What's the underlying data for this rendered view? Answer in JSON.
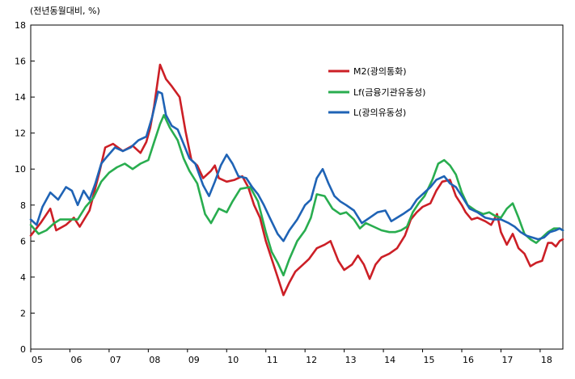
{
  "chart_data": {
    "type": "line",
    "unit_label": "(전년동월대비, %)",
    "ylim": [
      0,
      18
    ],
    "yticks": [
      0,
      2,
      4,
      6,
      8,
      10,
      12,
      14,
      16,
      18
    ],
    "xlim": [
      2005,
      2018.58
    ],
    "xticks": [
      {
        "label": "05",
        "value": 2005
      },
      {
        "label": "06",
        "value": 2006
      },
      {
        "label": "07",
        "value": 2007
      },
      {
        "label": "08",
        "value": 2008
      },
      {
        "label": "09",
        "value": 2009
      },
      {
        "label": "10",
        "value": 2010
      },
      {
        "label": "11",
        "value": 2011
      },
      {
        "label": "12",
        "value": 2012
      },
      {
        "label": "13",
        "value": 2013
      },
      {
        "label": "14",
        "value": 2014
      },
      {
        "label": "15",
        "value": 2015
      },
      {
        "label": "16",
        "value": 2016
      },
      {
        "label": "17",
        "value": 2017
      },
      {
        "label": "18",
        "value": 2018
      }
    ],
    "grid": false,
    "legend_position": "top-right",
    "series": [
      {
        "name": "M2(광의통화)",
        "color": "#cc1f26",
        "points": [
          [
            2005.0,
            6.3
          ],
          [
            2005.25,
            7.0
          ],
          [
            2005.5,
            7.8
          ],
          [
            2005.65,
            6.6
          ],
          [
            2005.9,
            6.9
          ],
          [
            2006.1,
            7.3
          ],
          [
            2006.25,
            6.8
          ],
          [
            2006.5,
            7.7
          ],
          [
            2006.75,
            9.8
          ],
          [
            2006.9,
            11.2
          ],
          [
            2007.1,
            11.4
          ],
          [
            2007.35,
            11.0
          ],
          [
            2007.6,
            11.3
          ],
          [
            2007.8,
            10.9
          ],
          [
            2007.95,
            11.5
          ],
          [
            2008.05,
            12.3
          ],
          [
            2008.15,
            13.5
          ],
          [
            2008.3,
            15.8
          ],
          [
            2008.45,
            15.0
          ],
          [
            2008.6,
            14.6
          ],
          [
            2008.8,
            14.0
          ],
          [
            2008.95,
            12.1
          ],
          [
            2009.1,
            10.5
          ],
          [
            2009.25,
            10.2
          ],
          [
            2009.4,
            9.5
          ],
          [
            2009.6,
            9.9
          ],
          [
            2009.7,
            10.2
          ],
          [
            2009.8,
            9.5
          ],
          [
            2010.0,
            9.3
          ],
          [
            2010.2,
            9.4
          ],
          [
            2010.4,
            9.6
          ],
          [
            2010.55,
            9.0
          ],
          [
            2010.7,
            8.0
          ],
          [
            2010.85,
            7.3
          ],
          [
            2011.0,
            6.0
          ],
          [
            2011.15,
            5.0
          ],
          [
            2011.3,
            4.0
          ],
          [
            2011.45,
            3.0
          ],
          [
            2011.6,
            3.7
          ],
          [
            2011.75,
            4.3
          ],
          [
            2011.95,
            4.7
          ],
          [
            2012.1,
            5.0
          ],
          [
            2012.3,
            5.6
          ],
          [
            2012.5,
            5.8
          ],
          [
            2012.65,
            6.0
          ],
          [
            2012.85,
            4.9
          ],
          [
            2013.0,
            4.4
          ],
          [
            2013.2,
            4.7
          ],
          [
            2013.35,
            5.2
          ],
          [
            2013.5,
            4.7
          ],
          [
            2013.65,
            3.9
          ],
          [
            2013.8,
            4.7
          ],
          [
            2013.95,
            5.1
          ],
          [
            2014.15,
            5.3
          ],
          [
            2014.35,
            5.6
          ],
          [
            2014.55,
            6.3
          ],
          [
            2014.7,
            7.2
          ],
          [
            2014.85,
            7.6
          ],
          [
            2015.0,
            7.9
          ],
          [
            2015.2,
            8.1
          ],
          [
            2015.35,
            8.8
          ],
          [
            2015.5,
            9.3
          ],
          [
            2015.7,
            9.4
          ],
          [
            2015.85,
            8.5
          ],
          [
            2016.0,
            8.0
          ],
          [
            2016.1,
            7.6
          ],
          [
            2016.25,
            7.2
          ],
          [
            2016.4,
            7.3
          ],
          [
            2016.6,
            7.1
          ],
          [
            2016.75,
            6.9
          ],
          [
            2016.9,
            7.5
          ],
          [
            2017.0,
            6.5
          ],
          [
            2017.15,
            5.8
          ],
          [
            2017.3,
            6.4
          ],
          [
            2017.45,
            5.6
          ],
          [
            2017.6,
            5.3
          ],
          [
            2017.75,
            4.6
          ],
          [
            2017.9,
            4.8
          ],
          [
            2018.05,
            4.9
          ],
          [
            2018.2,
            5.9
          ],
          [
            2018.3,
            5.9
          ],
          [
            2018.4,
            5.7
          ],
          [
            2018.5,
            6.0
          ],
          [
            2018.58,
            6.1
          ]
        ]
      },
      {
        "name": "Lf(금융기관유동성)",
        "color": "#29ad4f",
        "points": [
          [
            2005.0,
            6.9
          ],
          [
            2005.2,
            6.4
          ],
          [
            2005.4,
            6.6
          ],
          [
            2005.6,
            7.0
          ],
          [
            2005.75,
            7.2
          ],
          [
            2006.0,
            7.2
          ],
          [
            2006.2,
            7.2
          ],
          [
            2006.4,
            7.9
          ],
          [
            2006.6,
            8.4
          ],
          [
            2006.8,
            9.3
          ],
          [
            2007.0,
            9.8
          ],
          [
            2007.2,
            10.1
          ],
          [
            2007.4,
            10.3
          ],
          [
            2007.6,
            10.0
          ],
          [
            2007.8,
            10.3
          ],
          [
            2008.0,
            10.5
          ],
          [
            2008.15,
            11.5
          ],
          [
            2008.3,
            12.5
          ],
          [
            2008.4,
            13.0
          ],
          [
            2008.55,
            12.3
          ],
          [
            2008.75,
            11.6
          ],
          [
            2008.9,
            10.6
          ],
          [
            2009.05,
            9.9
          ],
          [
            2009.25,
            9.2
          ],
          [
            2009.45,
            7.5
          ],
          [
            2009.6,
            7.0
          ],
          [
            2009.8,
            7.8
          ],
          [
            2010.0,
            7.6
          ],
          [
            2010.15,
            8.2
          ],
          [
            2010.35,
            8.9
          ],
          [
            2010.6,
            9.0
          ],
          [
            2010.8,
            8.2
          ],
          [
            2011.0,
            6.5
          ],
          [
            2011.15,
            5.4
          ],
          [
            2011.3,
            4.8
          ],
          [
            2011.45,
            4.1
          ],
          [
            2011.6,
            5.0
          ],
          [
            2011.8,
            6.0
          ],
          [
            2012.0,
            6.6
          ],
          [
            2012.15,
            7.3
          ],
          [
            2012.3,
            8.6
          ],
          [
            2012.5,
            8.5
          ],
          [
            2012.7,
            7.8
          ],
          [
            2012.9,
            7.5
          ],
          [
            2013.05,
            7.6
          ],
          [
            2013.25,
            7.2
          ],
          [
            2013.4,
            6.7
          ],
          [
            2013.55,
            7.0
          ],
          [
            2013.75,
            6.8
          ],
          [
            2013.95,
            6.6
          ],
          [
            2014.15,
            6.5
          ],
          [
            2014.3,
            6.5
          ],
          [
            2014.45,
            6.6
          ],
          [
            2014.6,
            6.8
          ],
          [
            2014.75,
            7.6
          ],
          [
            2014.9,
            8.1
          ],
          [
            2015.05,
            8.5
          ],
          [
            2015.25,
            9.4
          ],
          [
            2015.4,
            10.3
          ],
          [
            2015.55,
            10.5
          ],
          [
            2015.7,
            10.2
          ],
          [
            2015.85,
            9.7
          ],
          [
            2016.0,
            8.7
          ],
          [
            2016.15,
            8.0
          ],
          [
            2016.35,
            7.7
          ],
          [
            2016.55,
            7.5
          ],
          [
            2016.7,
            7.6
          ],
          [
            2016.85,
            7.4
          ],
          [
            2017.0,
            7.3
          ],
          [
            2017.15,
            7.8
          ],
          [
            2017.3,
            8.1
          ],
          [
            2017.45,
            7.3
          ],
          [
            2017.6,
            6.4
          ],
          [
            2017.75,
            6.1
          ],
          [
            2017.9,
            5.9
          ],
          [
            2018.05,
            6.2
          ],
          [
            2018.2,
            6.5
          ],
          [
            2018.35,
            6.7
          ],
          [
            2018.5,
            6.7
          ],
          [
            2018.58,
            6.6
          ]
        ]
      },
      {
        "name": "L(광의유동성)",
        "color": "#1f63b5",
        "points": [
          [
            2005.0,
            7.2
          ],
          [
            2005.15,
            6.9
          ],
          [
            2005.3,
            7.9
          ],
          [
            2005.5,
            8.7
          ],
          [
            2005.7,
            8.3
          ],
          [
            2005.9,
            9.0
          ],
          [
            2006.05,
            8.8
          ],
          [
            2006.2,
            8.0
          ],
          [
            2006.35,
            8.8
          ],
          [
            2006.5,
            8.3
          ],
          [
            2006.65,
            9.2
          ],
          [
            2006.8,
            10.3
          ],
          [
            2006.95,
            10.7
          ],
          [
            2007.15,
            11.2
          ],
          [
            2007.35,
            11.0
          ],
          [
            2007.55,
            11.2
          ],
          [
            2007.75,
            11.6
          ],
          [
            2007.95,
            11.8
          ],
          [
            2008.1,
            12.9
          ],
          [
            2008.25,
            14.3
          ],
          [
            2008.35,
            14.2
          ],
          [
            2008.45,
            13.0
          ],
          [
            2008.6,
            12.4
          ],
          [
            2008.75,
            12.2
          ],
          [
            2008.9,
            11.4
          ],
          [
            2009.05,
            10.6
          ],
          [
            2009.2,
            10.3
          ],
          [
            2009.4,
            9.1
          ],
          [
            2009.55,
            8.5
          ],
          [
            2009.7,
            9.3
          ],
          [
            2009.85,
            10.2
          ],
          [
            2010.0,
            10.8
          ],
          [
            2010.15,
            10.3
          ],
          [
            2010.3,
            9.6
          ],
          [
            2010.5,
            9.5
          ],
          [
            2010.65,
            9.0
          ],
          [
            2010.8,
            8.6
          ],
          [
            2010.95,
            8.0
          ],
          [
            2011.1,
            7.3
          ],
          [
            2011.3,
            6.4
          ],
          [
            2011.45,
            6.0
          ],
          [
            2011.6,
            6.6
          ],
          [
            2011.8,
            7.2
          ],
          [
            2012.0,
            8.0
          ],
          [
            2012.15,
            8.3
          ],
          [
            2012.3,
            9.5
          ],
          [
            2012.45,
            10.0
          ],
          [
            2012.6,
            9.2
          ],
          [
            2012.75,
            8.5
          ],
          [
            2012.9,
            8.2
          ],
          [
            2013.05,
            8.0
          ],
          [
            2013.25,
            7.7
          ],
          [
            2013.45,
            7.0
          ],
          [
            2013.65,
            7.3
          ],
          [
            2013.85,
            7.6
          ],
          [
            2014.05,
            7.7
          ],
          [
            2014.2,
            7.1
          ],
          [
            2014.35,
            7.3
          ],
          [
            2014.5,
            7.5
          ],
          [
            2014.7,
            7.8
          ],
          [
            2014.85,
            8.3
          ],
          [
            2015.0,
            8.6
          ],
          [
            2015.2,
            9.0
          ],
          [
            2015.35,
            9.4
          ],
          [
            2015.55,
            9.6
          ],
          [
            2015.7,
            9.2
          ],
          [
            2015.85,
            9.0
          ],
          [
            2016.0,
            8.5
          ],
          [
            2016.2,
            7.8
          ],
          [
            2016.4,
            7.6
          ],
          [
            2016.6,
            7.3
          ],
          [
            2016.8,
            7.2
          ],
          [
            2017.0,
            7.2
          ],
          [
            2017.2,
            7.0
          ],
          [
            2017.35,
            6.8
          ],
          [
            2017.5,
            6.5
          ],
          [
            2017.65,
            6.3
          ],
          [
            2017.8,
            6.2
          ],
          [
            2017.95,
            6.1
          ],
          [
            2018.1,
            6.2
          ],
          [
            2018.25,
            6.5
          ],
          [
            2018.4,
            6.6
          ],
          [
            2018.5,
            6.7
          ],
          [
            2018.58,
            6.6
          ]
        ]
      }
    ]
  }
}
